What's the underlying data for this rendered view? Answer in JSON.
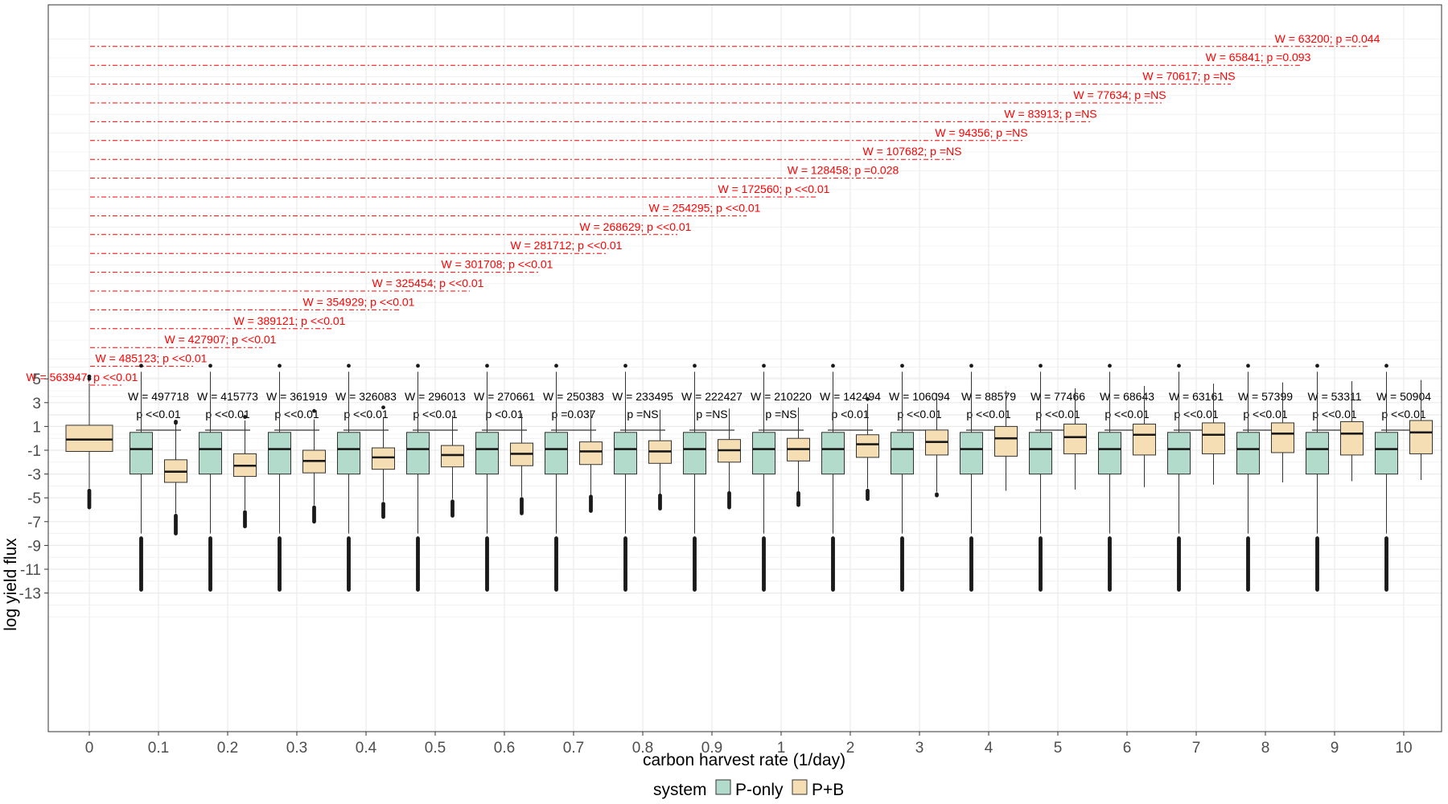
{
  "colors": {
    "p_only": "#b3dbcb",
    "p_b": "#f5deb3",
    "annotation_red": "#ff0000",
    "grid": "#ebebeb",
    "box_stroke": "#333333",
    "outlier": "#1a1a1a"
  },
  "chart_data": {
    "type": "boxplot",
    "xlabel": "carbon harvest rate (1/day)",
    "ylabel": "log yield flux",
    "categories": [
      "0",
      "0.1",
      "0.2",
      "0.3",
      "0.4",
      "0.5",
      "0.6",
      "0.7",
      "0.8",
      "0.9",
      "1",
      "2",
      "3",
      "4",
      "5",
      "6",
      "7",
      "8",
      "9",
      "10"
    ],
    "y_ticks": [
      5,
      3,
      1,
      -1,
      -3,
      -5,
      -7,
      -9,
      -11,
      -13
    ],
    "y_tick_labels": [
      "5",
      "3",
      "1",
      "-1",
      "-3",
      "-5",
      "-7",
      "-9",
      "-11",
      "-13"
    ],
    "ylim": [
      -15.5,
      6.5
    ],
    "grid": true,
    "legend": {
      "title": "system",
      "placement": "bottom",
      "entries": [
        {
          "name": "P-only",
          "color": "#b3dbcb"
        },
        {
          "name": "P+B",
          "color": "#f5deb3"
        }
      ]
    },
    "series": [
      {
        "name": "P-only",
        "categories": [
          "0.1",
          "0.2",
          "0.3",
          "0.4",
          "0.5",
          "0.6",
          "0.7",
          "0.8",
          "0.9",
          "1",
          "2",
          "3",
          "4",
          "5",
          "6",
          "7",
          "8",
          "9",
          "10"
        ],
        "q1": [
          -3.0,
          -3.0,
          -3.0,
          -3.0,
          -3.0,
          -3.0,
          -3.0,
          -3.0,
          -3.0,
          -3.0,
          -3.0,
          -3.0,
          -3.0,
          -3.0,
          -3.0,
          -3.0,
          -3.0,
          -3.0,
          -3.0
        ],
        "median": [
          -0.9,
          -0.9,
          -0.9,
          -0.9,
          -0.9,
          -0.9,
          -0.9,
          -0.9,
          -0.9,
          -0.9,
          -0.9,
          -0.9,
          -0.9,
          -0.9,
          -0.9,
          -0.9,
          -0.9,
          -0.9,
          -0.9
        ],
        "q3": [
          0.5,
          0.5,
          0.5,
          0.5,
          0.5,
          0.5,
          0.5,
          0.5,
          0.5,
          0.5,
          0.5,
          0.5,
          0.5,
          0.5,
          0.5,
          0.5,
          0.5,
          0.5,
          0.5
        ],
        "whisker_low": [
          -8.0,
          -8.0,
          -8.0,
          -8.0,
          -8.0,
          -8.0,
          -8.0,
          -8.0,
          -8.0,
          -8.0,
          -8.0,
          -8.0,
          -8.0,
          -8.0,
          -8.0,
          -8.0,
          -8.0,
          -8.0,
          -8.0
        ],
        "whisker_high": [
          5.6,
          5.6,
          5.6,
          5.6,
          5.6,
          5.6,
          5.6,
          5.6,
          5.6,
          5.6,
          5.6,
          5.6,
          5.6,
          5.6,
          5.6,
          5.6,
          5.6,
          5.6,
          5.6
        ],
        "outliers_high": [
          [
            6.1
          ],
          [
            6.1
          ],
          [
            6.1
          ],
          [
            6.1
          ],
          [
            6.1
          ],
          [
            6.1
          ],
          [
            6.1
          ],
          [
            6.1
          ],
          [
            6.1
          ],
          [
            6.1
          ],
          [
            6.1
          ],
          [
            6.1
          ],
          [
            6.1
          ],
          [
            6.1
          ],
          [
            6.1
          ],
          [
            6.1
          ],
          [
            6.1
          ],
          [
            6.1
          ],
          [
            6.1
          ]
        ],
        "outlier_dense_range": [
          -8.4,
          -12.8
        ]
      },
      {
        "name": "P+B",
        "categories": [
          "0",
          "0.1",
          "0.2",
          "0.3",
          "0.4",
          "0.5",
          "0.6",
          "0.7",
          "0.8",
          "0.9",
          "1",
          "2",
          "3",
          "4",
          "5",
          "6",
          "7",
          "8",
          "9",
          "10"
        ],
        "q1": [
          -1.1,
          -3.7,
          -3.2,
          -2.9,
          -2.6,
          -2.4,
          -2.3,
          -2.2,
          -2.1,
          -2.0,
          -1.9,
          -1.6,
          -1.4,
          -1.5,
          -1.3,
          -1.4,
          -1.3,
          -1.2,
          -1.4,
          -1.3
        ],
        "median": [
          -0.1,
          -2.8,
          -2.3,
          -1.9,
          -1.6,
          -1.4,
          -1.3,
          -1.1,
          -1.1,
          -1.0,
          -0.9,
          -0.5,
          -0.3,
          0.0,
          0.1,
          0.3,
          0.3,
          0.4,
          0.4,
          0.5
        ],
        "q3": [
          1.1,
          -1.8,
          -1.3,
          -1.0,
          -0.8,
          -0.6,
          -0.4,
          -0.3,
          -0.2,
          -0.1,
          0.0,
          0.3,
          0.7,
          1.0,
          1.2,
          1.2,
          1.3,
          1.3,
          1.4,
          1.5
        ],
        "whisker_low": [
          -4.2,
          -6.3,
          -6.0,
          -5.6,
          -5.3,
          -5.1,
          -4.9,
          -4.8,
          -4.7,
          -4.5,
          -4.5,
          -4.2,
          -4.5,
          -4.4,
          -4.3,
          -4.1,
          -3.9,
          -3.7,
          -3.6,
          -3.5
        ],
        "whisker_high": [
          4.6,
          1.2,
          1.5,
          1.6,
          1.8,
          1.9,
          2.1,
          2.3,
          2.4,
          2.5,
          2.6,
          2.9,
          3.8,
          4.0,
          4.2,
          4.4,
          4.6,
          4.7,
          4.8,
          4.9
        ],
        "outliers_high": [
          [
            5.0,
            5.2
          ],
          [
            1.3,
            1.4
          ],
          [
            1.8
          ],
          [
            2.3
          ],
          [
            2.6
          ],
          [],
          [],
          [],
          [],
          [],
          [],
          [
            3.3
          ],
          [],
          [],
          [],
          [],
          [],
          [],
          [],
          []
        ],
        "outliers_low": [
          [
            -4.4,
            -5.8
          ],
          [
            -6.5,
            -8.0
          ],
          [
            -6.2,
            -7.4
          ],
          [
            -5.8,
            -7.0
          ],
          [
            -5.5,
            -6.6
          ],
          [
            -5.3,
            -6.5
          ],
          [
            -5.1,
            -6.3
          ],
          [
            -4.9,
            -6.1
          ],
          [
            -4.8,
            -5.9
          ],
          [
            -4.6,
            -5.8
          ],
          [
            -4.6,
            -5.6
          ],
          [
            -4.4,
            -5.1
          ],
          [
            -4.7,
            -4.8
          ],
          [],
          [],
          [],
          [],
          [],
          [],
          []
        ]
      }
    ],
    "pairwise_tests": [
      {
        "category": "0.1",
        "w": "W = 497718",
        "p": "p <<0.01"
      },
      {
        "category": "0.2",
        "w": "W = 415773",
        "p": "p <<0.01"
      },
      {
        "category": "0.3",
        "w": "W = 361919",
        "p": "p <<0.01"
      },
      {
        "category": "0.4",
        "w": "W = 326083",
        "p": "p <<0.01"
      },
      {
        "category": "0.5",
        "w": "W = 296013",
        "p": "p <<0.01"
      },
      {
        "category": "0.6",
        "w": "W = 270661",
        "p": "p <0.01"
      },
      {
        "category": "0.7",
        "w": "W = 250383",
        "p": "p =0.037"
      },
      {
        "category": "0.8",
        "w": "W = 233495",
        "p": "p =NS"
      },
      {
        "category": "0.9",
        "w": "W = 222427",
        "p": "p =NS"
      },
      {
        "category": "1",
        "w": "W = 210220",
        "p": "p =NS"
      },
      {
        "category": "2",
        "w": "W = 142494",
        "p": "p <0.01"
      },
      {
        "category": "3",
        "w": "W = 106094",
        "p": "p <<0.01"
      },
      {
        "category": "4",
        "w": "W = 88579",
        "p": "p <<0.01"
      },
      {
        "category": "5",
        "w": "W = 77466",
        "p": "p <<0.01"
      },
      {
        "category": "6",
        "w": "W = 68643",
        "p": "p <<0.01"
      },
      {
        "category": "7",
        "w": "W = 63161",
        "p": "p <<0.01"
      },
      {
        "category": "8",
        "w": "W = 57399",
        "p": "p <<0.01"
      },
      {
        "category": "9",
        "w": "W = 53311",
        "p": "p <<0.01"
      },
      {
        "category": "10",
        "w": "W = 50904",
        "p": "p <<0.01"
      }
    ],
    "vs_zero_tests": [
      {
        "from": "0",
        "to": "0",
        "label": "W = 563947; p <<0.01"
      },
      {
        "from": "0",
        "to": "0.1",
        "label": "W = 485123; p <<0.01"
      },
      {
        "from": "0",
        "to": "0.2",
        "label": "W = 427907; p <<0.01"
      },
      {
        "from": "0",
        "to": "0.3",
        "label": "W = 389121; p <<0.01"
      },
      {
        "from": "0",
        "to": "0.4",
        "label": "W = 354929; p <<0.01"
      },
      {
        "from": "0",
        "to": "0.5",
        "label": "W = 325454; p <<0.01"
      },
      {
        "from": "0",
        "to": "0.6",
        "label": "W = 301708; p <<0.01"
      },
      {
        "from": "0",
        "to": "0.7",
        "label": "W = 281712; p <<0.01"
      },
      {
        "from": "0",
        "to": "0.8",
        "label": "W = 268629; p <<0.01"
      },
      {
        "from": "0",
        "to": "0.9",
        "label": "W = 254295; p <<0.01"
      },
      {
        "from": "0",
        "to": "1",
        "label": "W = 172560; p <<0.01"
      },
      {
        "from": "0",
        "to": "2",
        "label": "W = 128458; p =0.028"
      },
      {
        "from": "0",
        "to": "3",
        "label": "W = 107682; p =NS"
      },
      {
        "from": "0",
        "to": "4",
        "label": "W = 94356; p =NS"
      },
      {
        "from": "0",
        "to": "5",
        "label": "W = 83913; p =NS"
      },
      {
        "from": "0",
        "to": "6",
        "label": "W = 77634; p =NS"
      },
      {
        "from": "0",
        "to": "7",
        "label": "W = 70617; p =NS"
      },
      {
        "from": "0",
        "to": "8",
        "label": "W = 65841; p =0.093"
      },
      {
        "from": "0",
        "to": "9",
        "label": "W = 63200; p =0.044"
      }
    ]
  }
}
